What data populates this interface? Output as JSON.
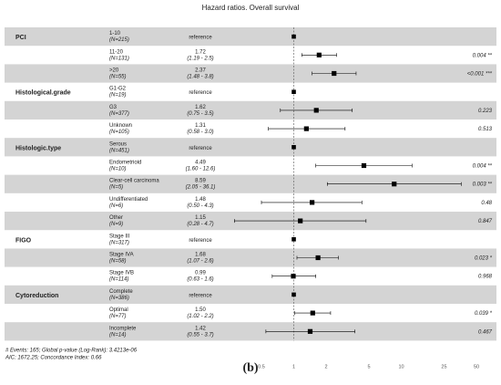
{
  "chart_data": {
    "type": "forest",
    "title": "Hazard ratios. Overall survival",
    "reference_label": "reference",
    "x_scale": "log",
    "x_ticks": [
      "0.5",
      "1",
      "2",
      "5",
      "10",
      "25",
      "50"
    ],
    "x_tick_values": [
      0.5,
      1,
      2,
      5,
      10,
      25,
      50
    ],
    "xlim": [
      0.5,
      50
    ],
    "groups": [
      {
        "name": "PCI",
        "rows": [
          {
            "level": "1-10",
            "n": "(N=215)",
            "reference": true,
            "hr": 1,
            "shaded": true
          },
          {
            "level": "11-20",
            "n": "(N=131)",
            "hr": 1.72,
            "lo": 1.19,
            "hi": 2.5,
            "hr_text": "1.72",
            "ci_text": "(1.19 - 2.5)",
            "p_text": "0.004 **",
            "shaded": false
          },
          {
            "level": ">20",
            "n": "(N=55)",
            "hr": 2.37,
            "lo": 1.48,
            "hi": 3.8,
            "hr_text": "2.37",
            "ci_text": "(1.48 - 3.8)",
            "p_text": "<0.001 ***",
            "shaded": true
          }
        ]
      },
      {
        "name": "Histological.grade",
        "rows": [
          {
            "level": "G1-G2",
            "n": "(N=19)",
            "reference": true,
            "hr": 1,
            "shaded": false
          },
          {
            "level": "G3",
            "n": "(N=377)",
            "hr": 1.62,
            "lo": 0.75,
            "hi": 3.5,
            "hr_text": "1.62",
            "ci_text": "(0.75 - 3.5)",
            "p_text": "0.223",
            "shaded": true
          },
          {
            "level": "Unknown",
            "n": "(N=105)",
            "hr": 1.31,
            "lo": 0.58,
            "hi": 3.0,
            "hr_text": "1.31",
            "ci_text": "(0.58 - 3.0)",
            "p_text": "0.513",
            "shaded": false
          }
        ]
      },
      {
        "name": "Histologic.type",
        "rows": [
          {
            "level": "Serous",
            "n": "(N=451)",
            "reference": true,
            "hr": 1,
            "shaded": true
          },
          {
            "level": "Endometrioid",
            "n": "(N=10)",
            "hr": 4.49,
            "lo": 1.6,
            "hi": 12.6,
            "hr_text": "4.49",
            "ci_text": "(1.60 - 12.6)",
            "p_text": "0.004 **",
            "shaded": false
          },
          {
            "level": "Clear-cell carcinoma",
            "n": "(N=5)",
            "hr": 8.59,
            "lo": 2.05,
            "hi": 36.1,
            "hr_text": "8.59",
            "ci_text": "(2.05 - 36.1)",
            "p_text": "0.003 **",
            "shaded": true
          },
          {
            "level": "Undifferentiated",
            "n": "(N=6)",
            "hr": 1.48,
            "lo": 0.5,
            "hi": 4.3,
            "hr_text": "1.48",
            "ci_text": "(0.50 - 4.3)",
            "p_text": "0.48",
            "shaded": false
          },
          {
            "level": "Other",
            "n": "(N=9)",
            "hr": 1.15,
            "lo": 0.28,
            "hi": 4.7,
            "hr_text": "1.15",
            "ci_text": "(0.28 - 4.7)",
            "p_text": "0.847",
            "shaded": true
          }
        ]
      },
      {
        "name": "FIGO",
        "rows": [
          {
            "level": "Stage III",
            "n": "(N=317)",
            "reference": true,
            "hr": 1,
            "shaded": false
          },
          {
            "level": "Stage IVA",
            "n": "(N=58)",
            "hr": 1.68,
            "lo": 1.07,
            "hi": 2.6,
            "hr_text": "1.68",
            "ci_text": "(1.07 - 2.6)",
            "p_text": "0.023 *",
            "shaded": true
          },
          {
            "level": "Stage IVB",
            "n": "(N=114)",
            "hr": 0.99,
            "lo": 0.63,
            "hi": 1.6,
            "hr_text": "0.99",
            "ci_text": "(0.63 - 1.6)",
            "p_text": "0.968",
            "shaded": false
          }
        ]
      },
      {
        "name": "Cytoreduction",
        "rows": [
          {
            "level": "Complete",
            "n": "(N=386)",
            "reference": true,
            "hr": 1,
            "shaded": true
          },
          {
            "level": "Optimal",
            "n": "(N=77)",
            "hr": 1.5,
            "lo": 1.02,
            "hi": 2.2,
            "hr_text": "1.50",
            "ci_text": "(1.02 - 2.2)",
            "p_text": "0.039 *",
            "shaded": false
          },
          {
            "level": "Incomplete",
            "n": "(N=14)",
            "hr": 1.42,
            "lo": 0.55,
            "hi": 3.7,
            "hr_text": "1.42",
            "ci_text": "(0.55 - 3.7)",
            "p_text": "0.467",
            "shaded": true
          }
        ]
      }
    ],
    "footnotes": [
      "# Events: 165; Global p-value (Log-Rank): 3.4213e-06",
      "AIC: 1672.25; Concordance Index: 0.66"
    ]
  },
  "caption": "(b)"
}
